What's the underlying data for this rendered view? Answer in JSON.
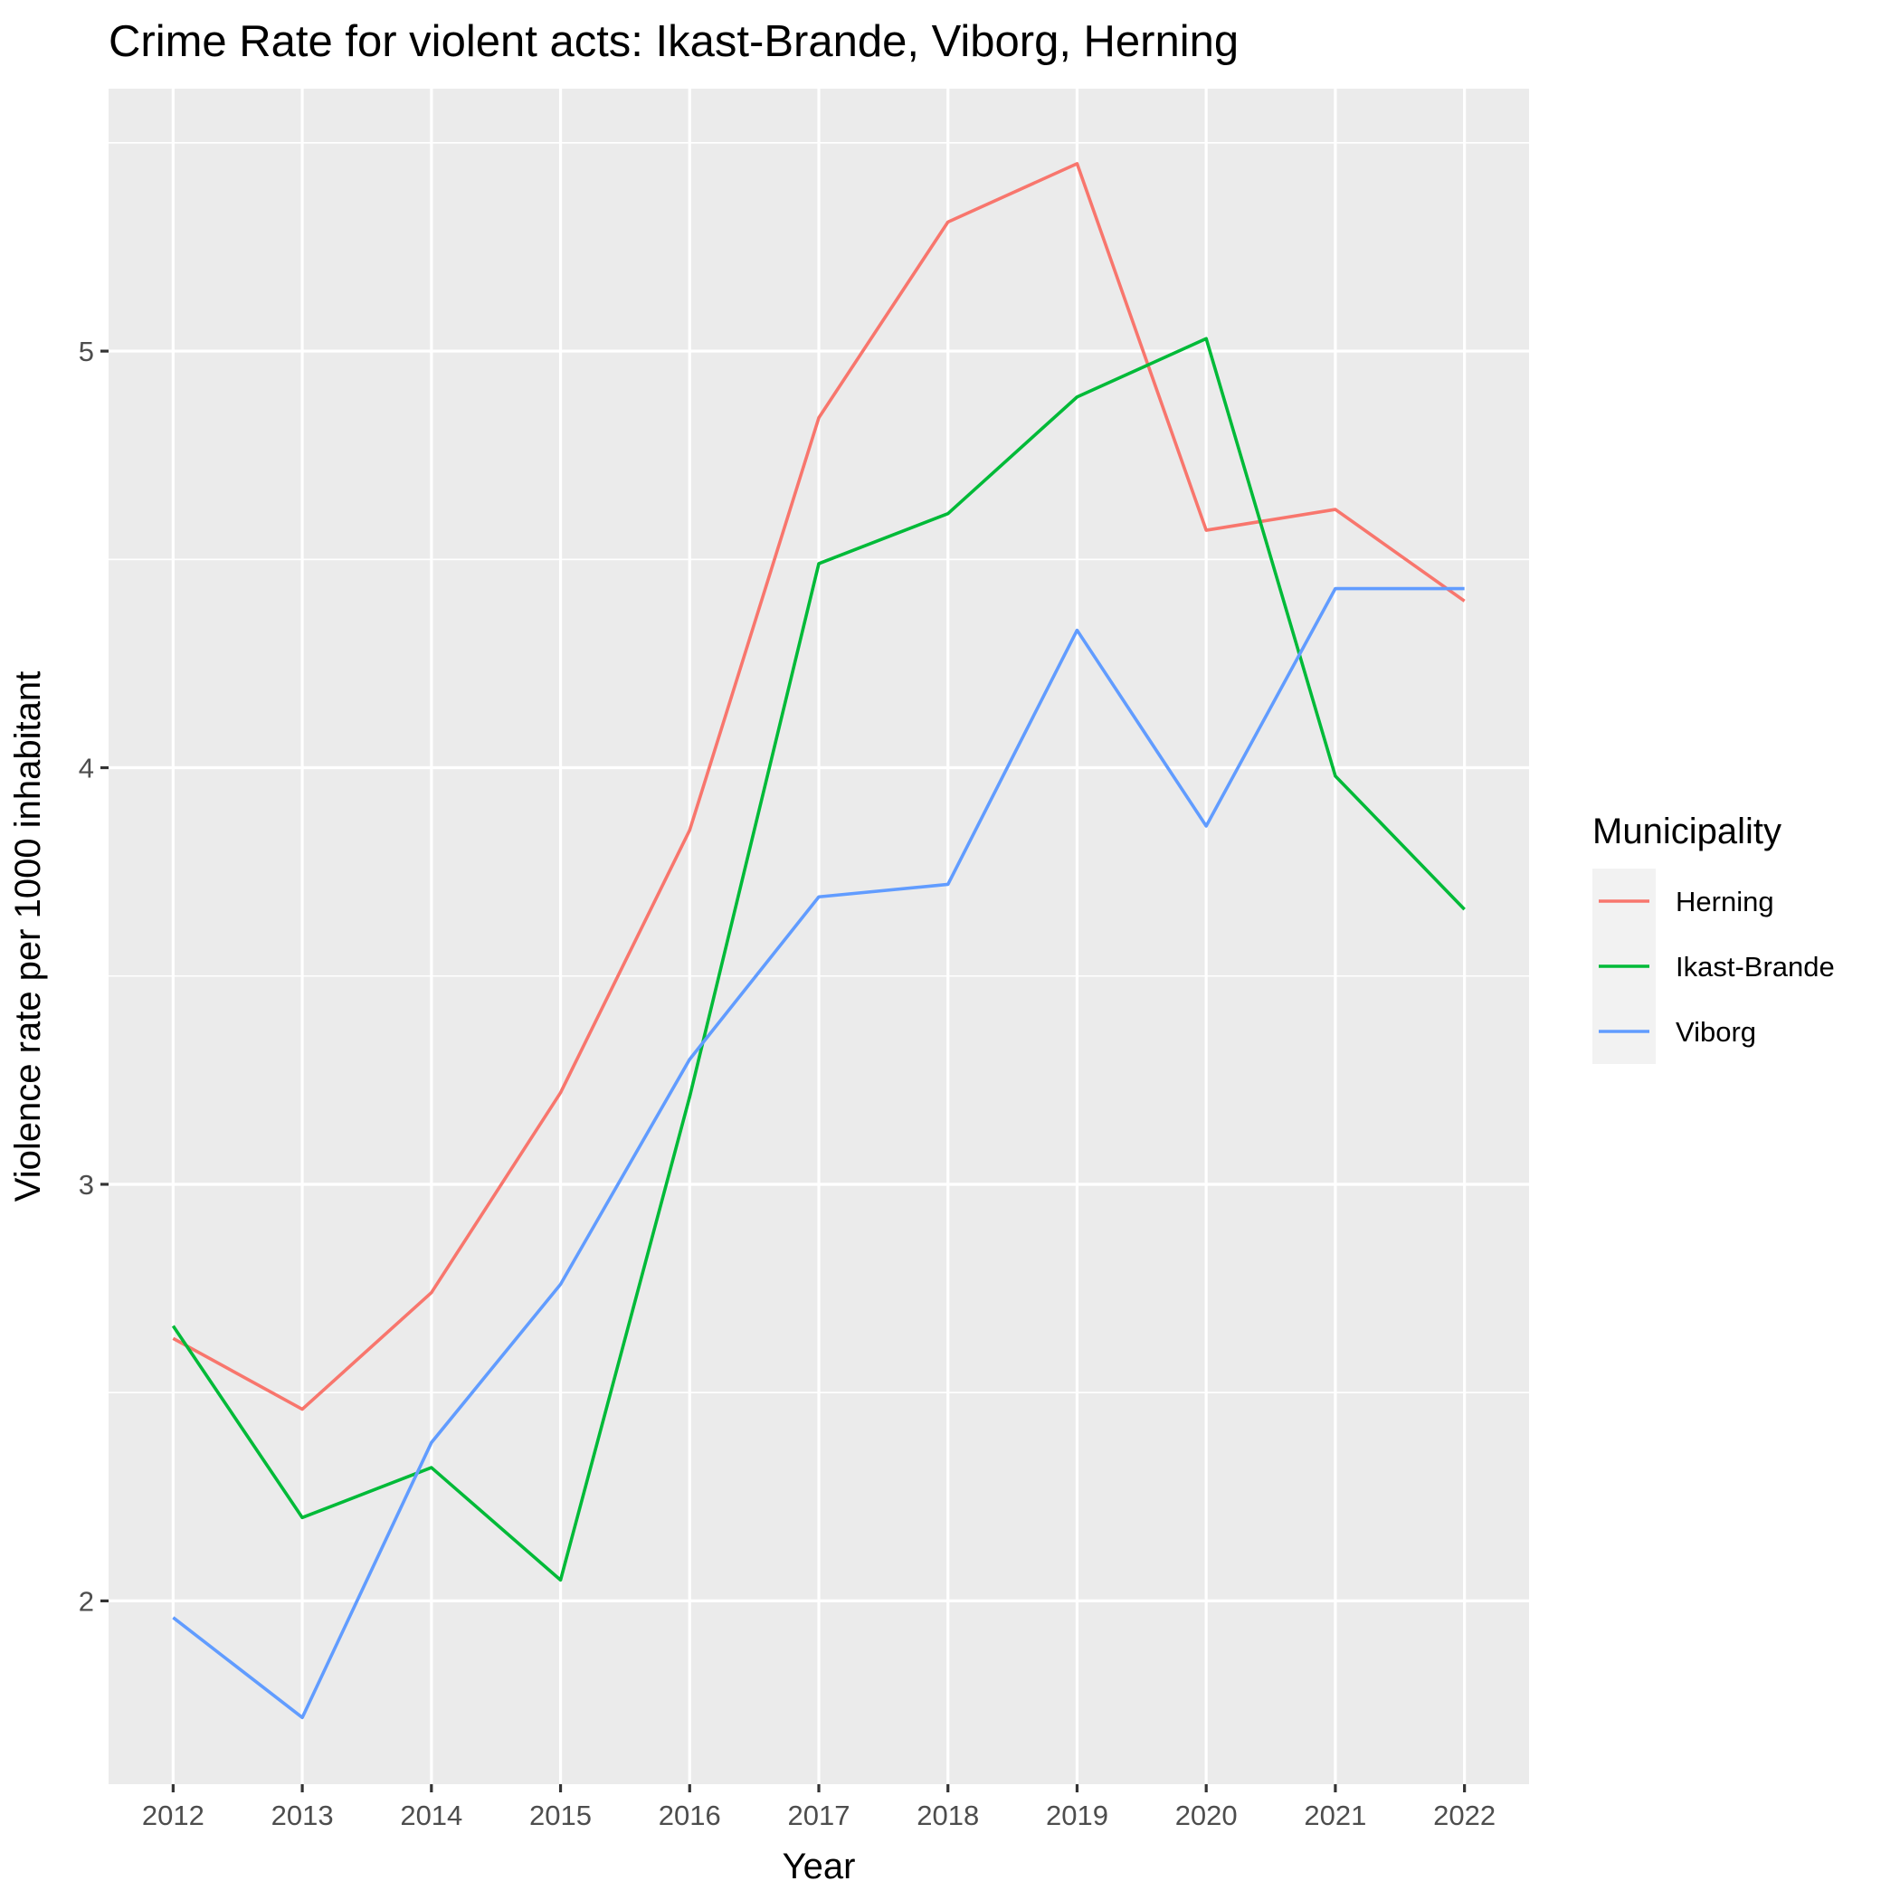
{
  "chart_data": {
    "type": "line",
    "title": "Crime Rate for violent acts: Ikast-Brande, Viborg, Herning",
    "xlabel": "Year",
    "ylabel": "Violence rate per 1000 inhabitant",
    "x": [
      2012,
      2013,
      2014,
      2015,
      2016,
      2017,
      2018,
      2019,
      2020,
      2021,
      2022
    ],
    "x_ticks": [
      "2012",
      "2013",
      "2014",
      "2015",
      "2016",
      "2017",
      "2018",
      "2019",
      "2020",
      "2021",
      "2022"
    ],
    "y_ticks": [
      2,
      3,
      4,
      5
    ],
    "y_tick_labels": [
      "2",
      "3",
      "4",
      "5"
    ],
    "ylim": [
      1.56,
      5.63
    ],
    "grid": true,
    "legend": {
      "title": "Municipality",
      "position": "right"
    },
    "series": [
      {
        "name": "Herning",
        "color": "#F8766D",
        "values": [
          2.63,
          2.46,
          2.74,
          3.22,
          3.85,
          4.84,
          5.31,
          5.45,
          4.57,
          4.62,
          4.4
        ]
      },
      {
        "name": "Ikast-Brande",
        "color": "#00BA38",
        "values": [
          2.66,
          2.2,
          2.32,
          2.05,
          3.21,
          4.49,
          4.61,
          4.89,
          5.03,
          3.98,
          3.66
        ]
      },
      {
        "name": "Viborg",
        "color": "#619CFF",
        "values": [
          1.96,
          1.72,
          2.38,
          2.76,
          3.3,
          3.69,
          3.72,
          4.33,
          3.86,
          4.43,
          4.43
        ]
      }
    ]
  }
}
